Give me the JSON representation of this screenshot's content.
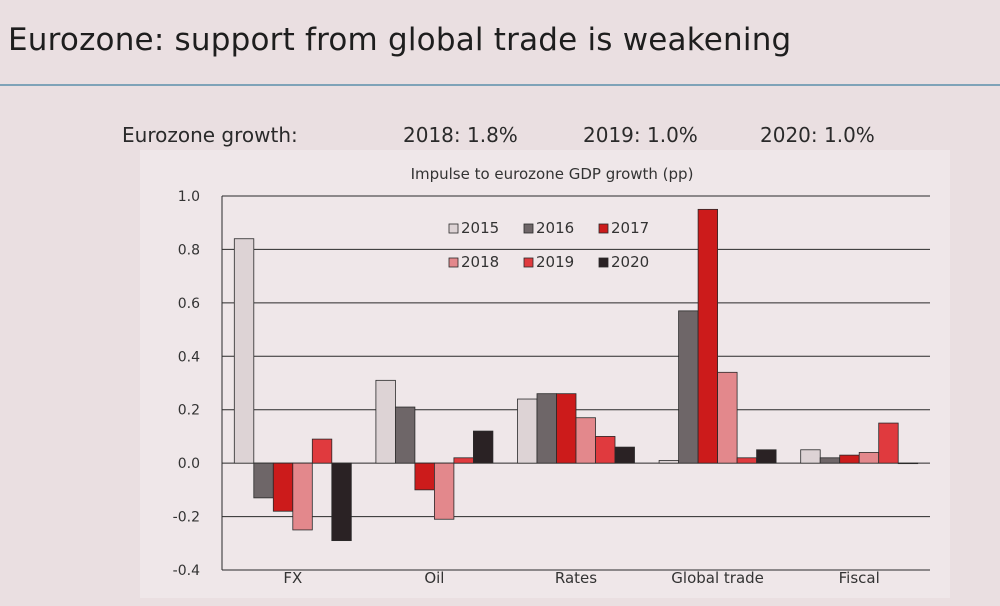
{
  "slide": {
    "title": "Eurozone: support from global trade is weakening",
    "growth_label": "Eurozone growth:",
    "growth_items": [
      "2018: 1.8%",
      "2019: 1.0%",
      "2020: 1.0%"
    ]
  },
  "colors": {
    "2015": "#ddd3d5",
    "2016": "#6e6668",
    "2017": "#cc1b1b",
    "2018": "#e3888c",
    "2019": "#e03a3e",
    "2020": "#2a2224"
  },
  "chart_data": {
    "type": "bar",
    "title": "Impulse to eurozone GDP growth (pp)",
    "categories": [
      "FX",
      "Oil",
      "Rates",
      "Global trade",
      "Fiscal"
    ],
    "series": [
      {
        "name": "2015",
        "values": [
          0.84,
          0.31,
          0.24,
          0.01,
          0.05
        ]
      },
      {
        "name": "2016",
        "values": [
          -0.13,
          0.21,
          0.26,
          0.57,
          0.02
        ]
      },
      {
        "name": "2017",
        "values": [
          -0.18,
          -0.1,
          0.26,
          0.95,
          0.03
        ]
      },
      {
        "name": "2018",
        "values": [
          -0.25,
          -0.21,
          0.17,
          0.34,
          0.04
        ]
      },
      {
        "name": "2019",
        "values": [
          0.09,
          0.02,
          0.1,
          0.02,
          0.15
        ]
      },
      {
        "name": "2020",
        "values": [
          -0.29,
          0.12,
          0.06,
          0.05,
          0.0
        ]
      }
    ],
    "ylim": [
      -0.4,
      1.0
    ],
    "yticks": [
      "1.0",
      "0.8",
      "0.6",
      "0.4",
      "0.2",
      "0.0",
      "-0.2",
      "-0.4"
    ],
    "grid": true,
    "legend_position": "top-center"
  }
}
